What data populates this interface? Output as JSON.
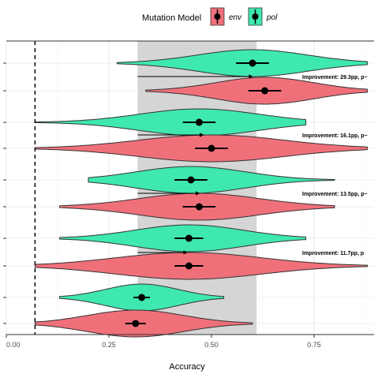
{
  "chart_data": {
    "type": "violin",
    "xlabel": "Accuracy",
    "ylabel": "",
    "xlim": [
      0.0,
      0.88
    ],
    "x_ticks": [
      "0.00",
      "0.25",
      "0.50",
      "0.75"
    ],
    "x_tick_values": [
      0.0,
      0.25,
      0.5,
      0.75
    ],
    "grid": true,
    "legend": {
      "title": "Mutation Model",
      "position": "top",
      "entries": [
        {
          "label": "env",
          "color": "#f0707a"
        },
        {
          "label": "pol",
          "color": "#3ee8b0"
        }
      ]
    },
    "reference_line": {
      "x": 0.07,
      "style": "dashed"
    },
    "shaded_band": {
      "from": 0.32,
      "to": 0.61,
      "color": "#d4d5d4"
    },
    "groups": [
      {
        "pol": {
          "mean": 0.6,
          "ci": [
            0.56,
            0.64
          ],
          "min": 0.27,
          "max": 0.88
        },
        "env": {
          "mean": 0.63,
          "ci": [
            0.59,
            0.67
          ],
          "min": 0.34,
          "max": 0.88
        },
        "arrow": [
          0.32,
          0.6
        ],
        "annotation": "Improvement: 29.3pp, p~"
      },
      {
        "pol": {
          "mean": 0.47,
          "ci": [
            0.43,
            0.51
          ],
          "min": 0.07,
          "max": 0.73
        },
        "env": {
          "mean": 0.5,
          "ci": [
            0.46,
            0.54
          ],
          "min": 0.07,
          "max": 0.88
        },
        "arrow": [
          0.32,
          0.48
        ],
        "annotation": "Improvement: 16.1pp, p~"
      },
      {
        "pol": {
          "mean": 0.45,
          "ci": [
            0.41,
            0.49
          ],
          "min": 0.2,
          "max": 0.8
        },
        "env": {
          "mean": 0.47,
          "ci": [
            0.43,
            0.51
          ],
          "min": 0.13,
          "max": 0.8
        },
        "arrow": [
          0.32,
          0.47
        ],
        "annotation": "Improvement: 13.5pp, p~"
      },
      {
        "pol": {
          "mean": 0.445,
          "ci": [
            0.41,
            0.48
          ],
          "min": 0.13,
          "max": 0.73
        },
        "env": {
          "mean": 0.445,
          "ci": [
            0.41,
            0.48
          ],
          "min": 0.07,
          "max": 0.88
        },
        "arrow": [
          0.32,
          0.44
        ],
        "annotation": "Improvement: 11.7pp, p"
      },
      {
        "pol": {
          "mean": 0.33,
          "ci": [
            0.31,
            0.35
          ],
          "min": 0.13,
          "max": 0.53
        },
        "env": {
          "mean": 0.315,
          "ci": [
            0.29,
            0.34
          ],
          "min": 0.07,
          "max": 0.6
        },
        "arrow": null,
        "annotation": ""
      }
    ]
  }
}
